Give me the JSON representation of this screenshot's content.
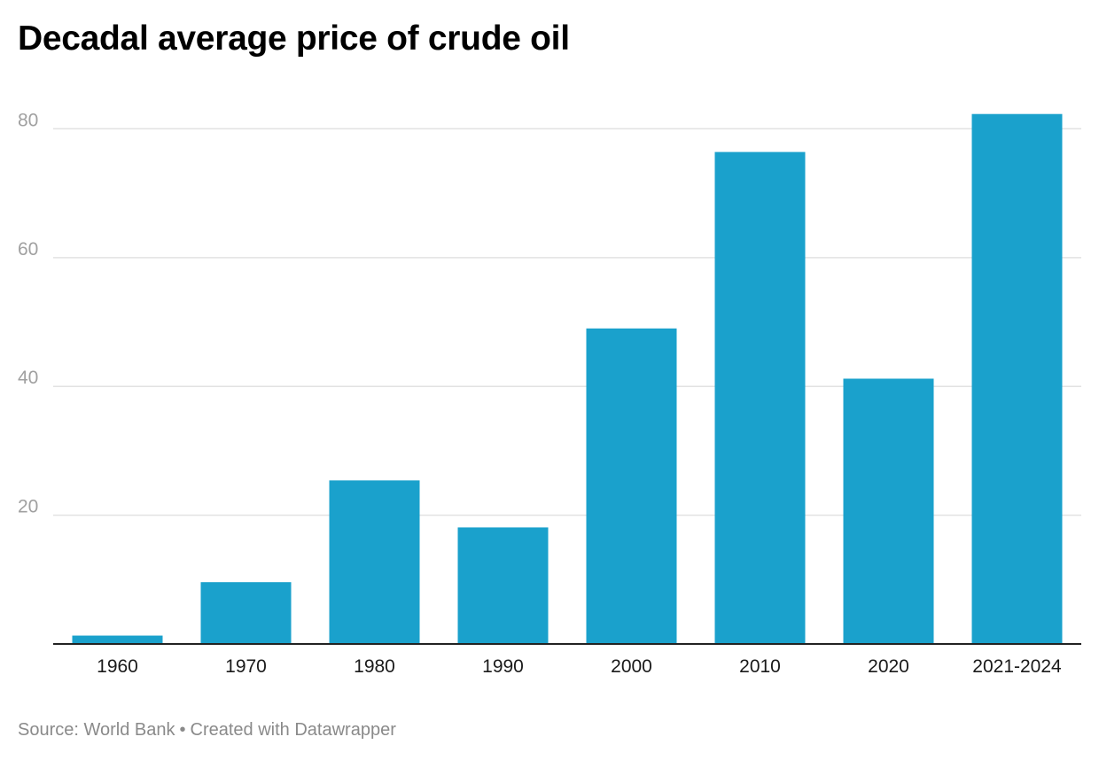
{
  "chart_data": {
    "type": "bar",
    "title": "Decadal average price of crude oil",
    "xlabel": "",
    "ylabel": "",
    "categories": [
      "1960",
      "1970",
      "1980",
      "1990",
      "2000",
      "2010",
      "2020",
      "2021-2024"
    ],
    "values": [
      1.3,
      9.6,
      25.4,
      18.1,
      49.0,
      76.4,
      41.2,
      82.3
    ],
    "ylim": [
      0,
      85
    ],
    "yticks": [
      20,
      40,
      60,
      80
    ],
    "grid": true,
    "legend": "none",
    "colors": {
      "bar": "#1aa1cc",
      "grid": "#e2e2e2",
      "axis": "#222222",
      "ytick_text": "#a0a0a0",
      "xtick_text": "#1a1a1a"
    }
  },
  "footer": {
    "source": "Source: World Bank",
    "separator": "•",
    "credit": "Created with Datawrapper"
  }
}
